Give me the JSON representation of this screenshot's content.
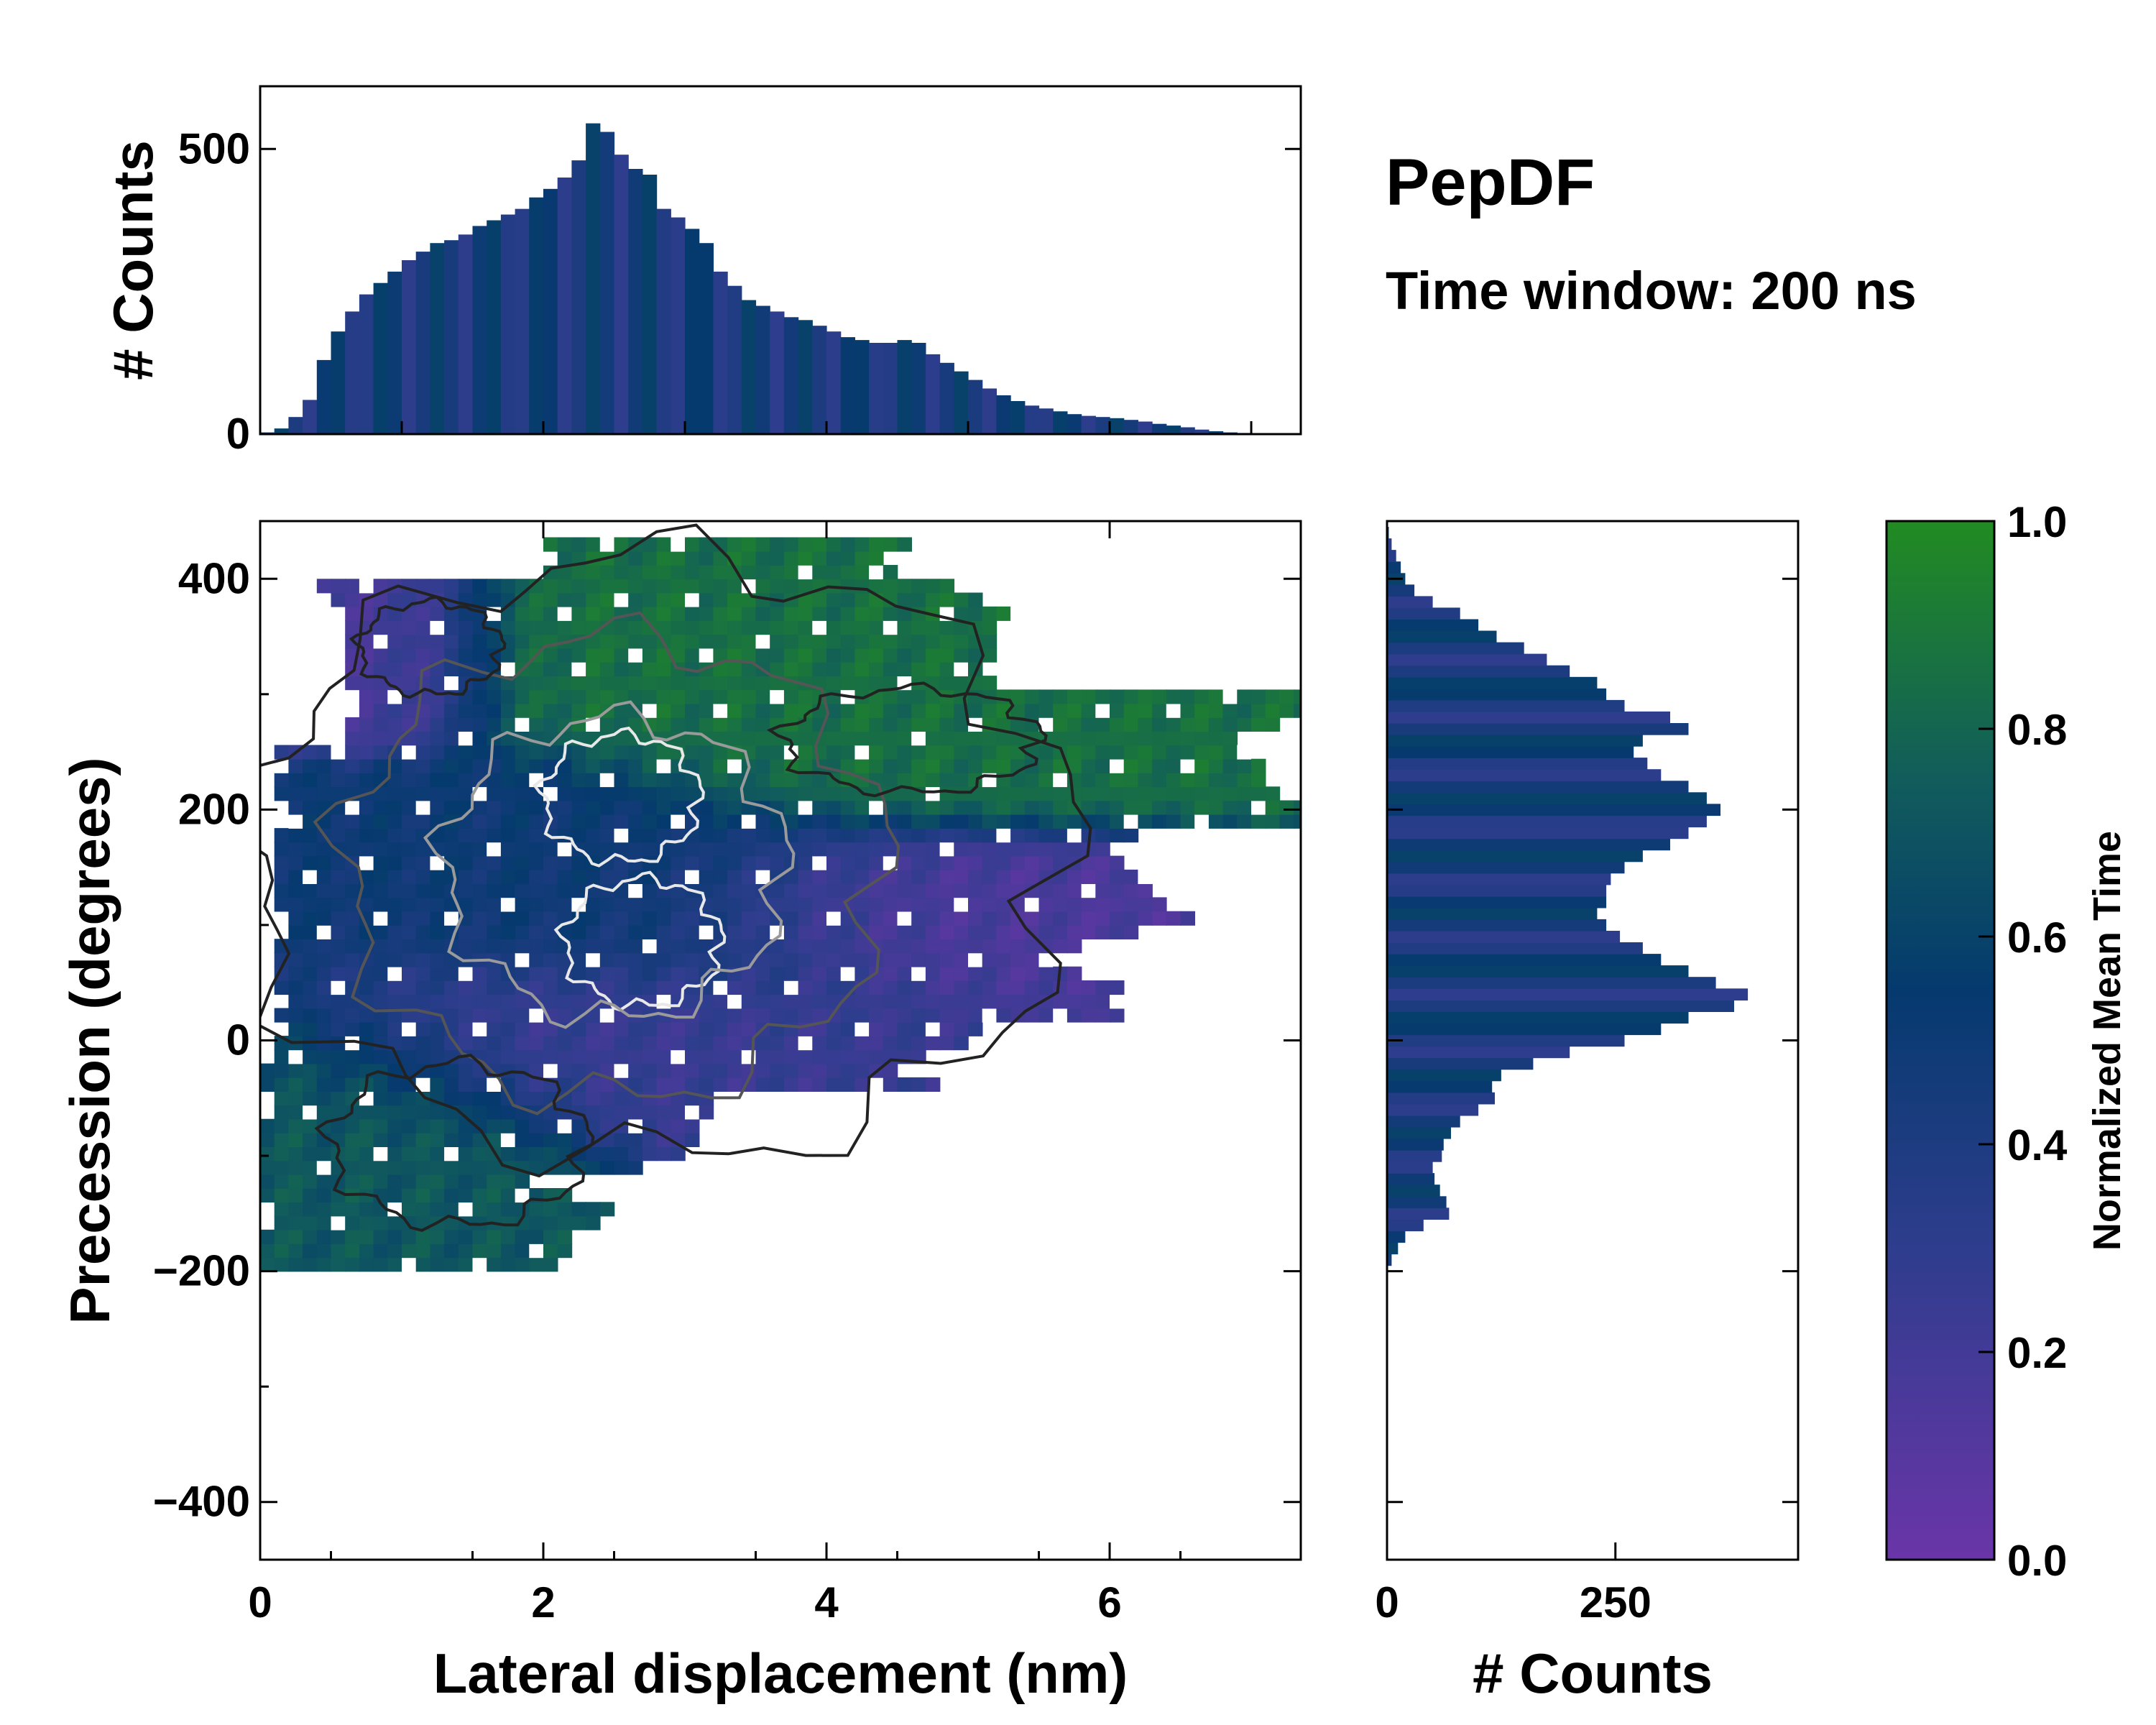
{
  "chart_data": [
    {
      "id": "joint",
      "type": "heatmap",
      "description_label": "2D histogram colored by normalized mean time with density contours",
      "xlabel": "Lateral displacement (nm)",
      "ylabel": "Precession (degrees)",
      "xlim": [
        0,
        7.35
      ],
      "ylim": [
        -450,
        450
      ],
      "xticks": [
        0,
        2,
        4,
        6
      ],
      "xtick_labels": [
        "0",
        "2",
        "4",
        "6"
      ],
      "yticks": [
        -400,
        -200,
        0,
        200,
        400
      ],
      "ytick_labels": [
        "−400",
        "−200",
        "0",
        "200",
        "400"
      ],
      "regions": [
        {
          "name": "upper-left-cluster",
          "x": 0.9,
          "y": 340,
          "rx": 0.6,
          "ry": 45,
          "t": 0.15
        },
        {
          "name": "upper-band",
          "x": 3.2,
          "y": 340,
          "rx": 1.6,
          "ry": 45,
          "t": 0.85
        },
        {
          "name": "mid-right",
          "x": 4.6,
          "y": 250,
          "rx": 1.4,
          "ry": 50,
          "t": 0.85
        },
        {
          "name": "center",
          "x": 2.6,
          "y": 130,
          "rx": 1.5,
          "ry": 70,
          "t": 0.5
        },
        {
          "name": "right-purple",
          "x": 4.5,
          "y": 120,
          "rx": 1.3,
          "ry": 50,
          "t": 0.15
        },
        {
          "name": "low-center",
          "x": 2.5,
          "y": 0,
          "rx": 1.5,
          "ry": 60,
          "t": 0.25
        },
        {
          "name": "bottom-left",
          "x": 0.8,
          "y": -90,
          "rx": 1.0,
          "ry": 80,
          "t": 0.72
        }
      ]
    },
    {
      "id": "top-hist",
      "type": "bar",
      "ylabel": "# Counts",
      "ylim": [
        0,
        610
      ],
      "yticks": [
        0,
        500
      ],
      "ytick_labels": [
        "0",
        "500"
      ],
      "x": [
        0.05,
        0.15,
        0.25,
        0.35,
        0.45,
        0.55,
        0.65,
        0.75,
        0.85,
        0.95,
        1.05,
        1.15,
        1.25,
        1.35,
        1.45,
        1.55,
        1.65,
        1.75,
        1.85,
        1.95,
        2.05,
        2.15,
        2.25,
        2.35,
        2.45,
        2.55,
        2.65,
        2.75,
        2.85,
        2.95,
        3.05,
        3.15,
        3.25,
        3.35,
        3.45,
        3.55,
        3.65,
        3.75,
        3.85,
        3.95,
        4.05,
        4.15,
        4.25,
        4.35,
        4.45,
        4.55,
        4.65,
        4.75,
        4.85,
        4.95,
        5.05,
        5.15,
        5.25,
        5.35,
        5.45,
        5.55,
        5.65,
        5.75,
        5.85,
        5.95,
        6.05,
        6.15,
        6.25,
        6.35,
        6.45,
        6.55,
        6.65,
        6.75,
        6.85,
        6.95,
        7.05,
        7.15
      ],
      "values": [
        3,
        10,
        30,
        60,
        130,
        180,
        215,
        245,
        265,
        285,
        305,
        320,
        335,
        340,
        350,
        365,
        375,
        385,
        395,
        415,
        430,
        450,
        480,
        545,
        530,
        490,
        465,
        455,
        395,
        380,
        360,
        335,
        285,
        260,
        235,
        225,
        215,
        205,
        200,
        190,
        180,
        170,
        165,
        160,
        160,
        165,
        160,
        140,
        125,
        110,
        95,
        80,
        68,
        58,
        50,
        45,
        40,
        35,
        32,
        30,
        28,
        25,
        22,
        18,
        15,
        12,
        8,
        5,
        3,
        2,
        1,
        0
      ]
    },
    {
      "id": "right-hist",
      "type": "bar",
      "orientation": "horizontal",
      "xlabel": "# Counts",
      "xlim": [
        0,
        450
      ],
      "xticks": [
        0,
        250
      ],
      "xtick_labels": [
        "0",
        "250"
      ],
      "y": [
        -190,
        -180,
        -170,
        -160,
        -150,
        -140,
        -130,
        -120,
        -110,
        -100,
        -90,
        -80,
        -70,
        -60,
        -50,
        -40,
        -30,
        -20,
        -10,
        0,
        10,
        20,
        30,
        40,
        50,
        60,
        70,
        80,
        90,
        100,
        110,
        120,
        130,
        140,
        150,
        160,
        170,
        180,
        190,
        200,
        210,
        220,
        230,
        240,
        250,
        260,
        270,
        280,
        290,
        300,
        310,
        320,
        330,
        340,
        350,
        360,
        370,
        380,
        390,
        400,
        410,
        420,
        430,
        440
      ],
      "values": [
        5,
        12,
        20,
        40,
        68,
        65,
        58,
        52,
        50,
        60,
        62,
        70,
        80,
        100,
        118,
        115,
        125,
        160,
        200,
        260,
        300,
        330,
        380,
        395,
        360,
        330,
        300,
        280,
        255,
        240,
        230,
        240,
        240,
        245,
        260,
        280,
        310,
        330,
        350,
        365,
        350,
        330,
        300,
        285,
        270,
        280,
        330,
        310,
        260,
        240,
        230,
        200,
        175,
        150,
        120,
        100,
        80,
        50,
        30,
        20,
        15,
        10,
        5,
        2
      ]
    },
    {
      "id": "colorbar",
      "type": "colorbar",
      "label": "Normalized Mean Time",
      "range": [
        0,
        1
      ],
      "ticks": [
        0.0,
        0.2,
        0.4,
        0.6,
        0.8,
        1.0
      ],
      "tick_labels": [
        "0.0",
        "0.2",
        "0.4",
        "0.6",
        "0.8",
        "1.0"
      ],
      "colors": [
        "#6a35a8",
        "#2e3d8d",
        "#053a6e",
        "#115c5c",
        "#228b22"
      ]
    }
  ],
  "annotation": {
    "title": "PepDF",
    "subtitle": "Time window: 200 ns"
  }
}
